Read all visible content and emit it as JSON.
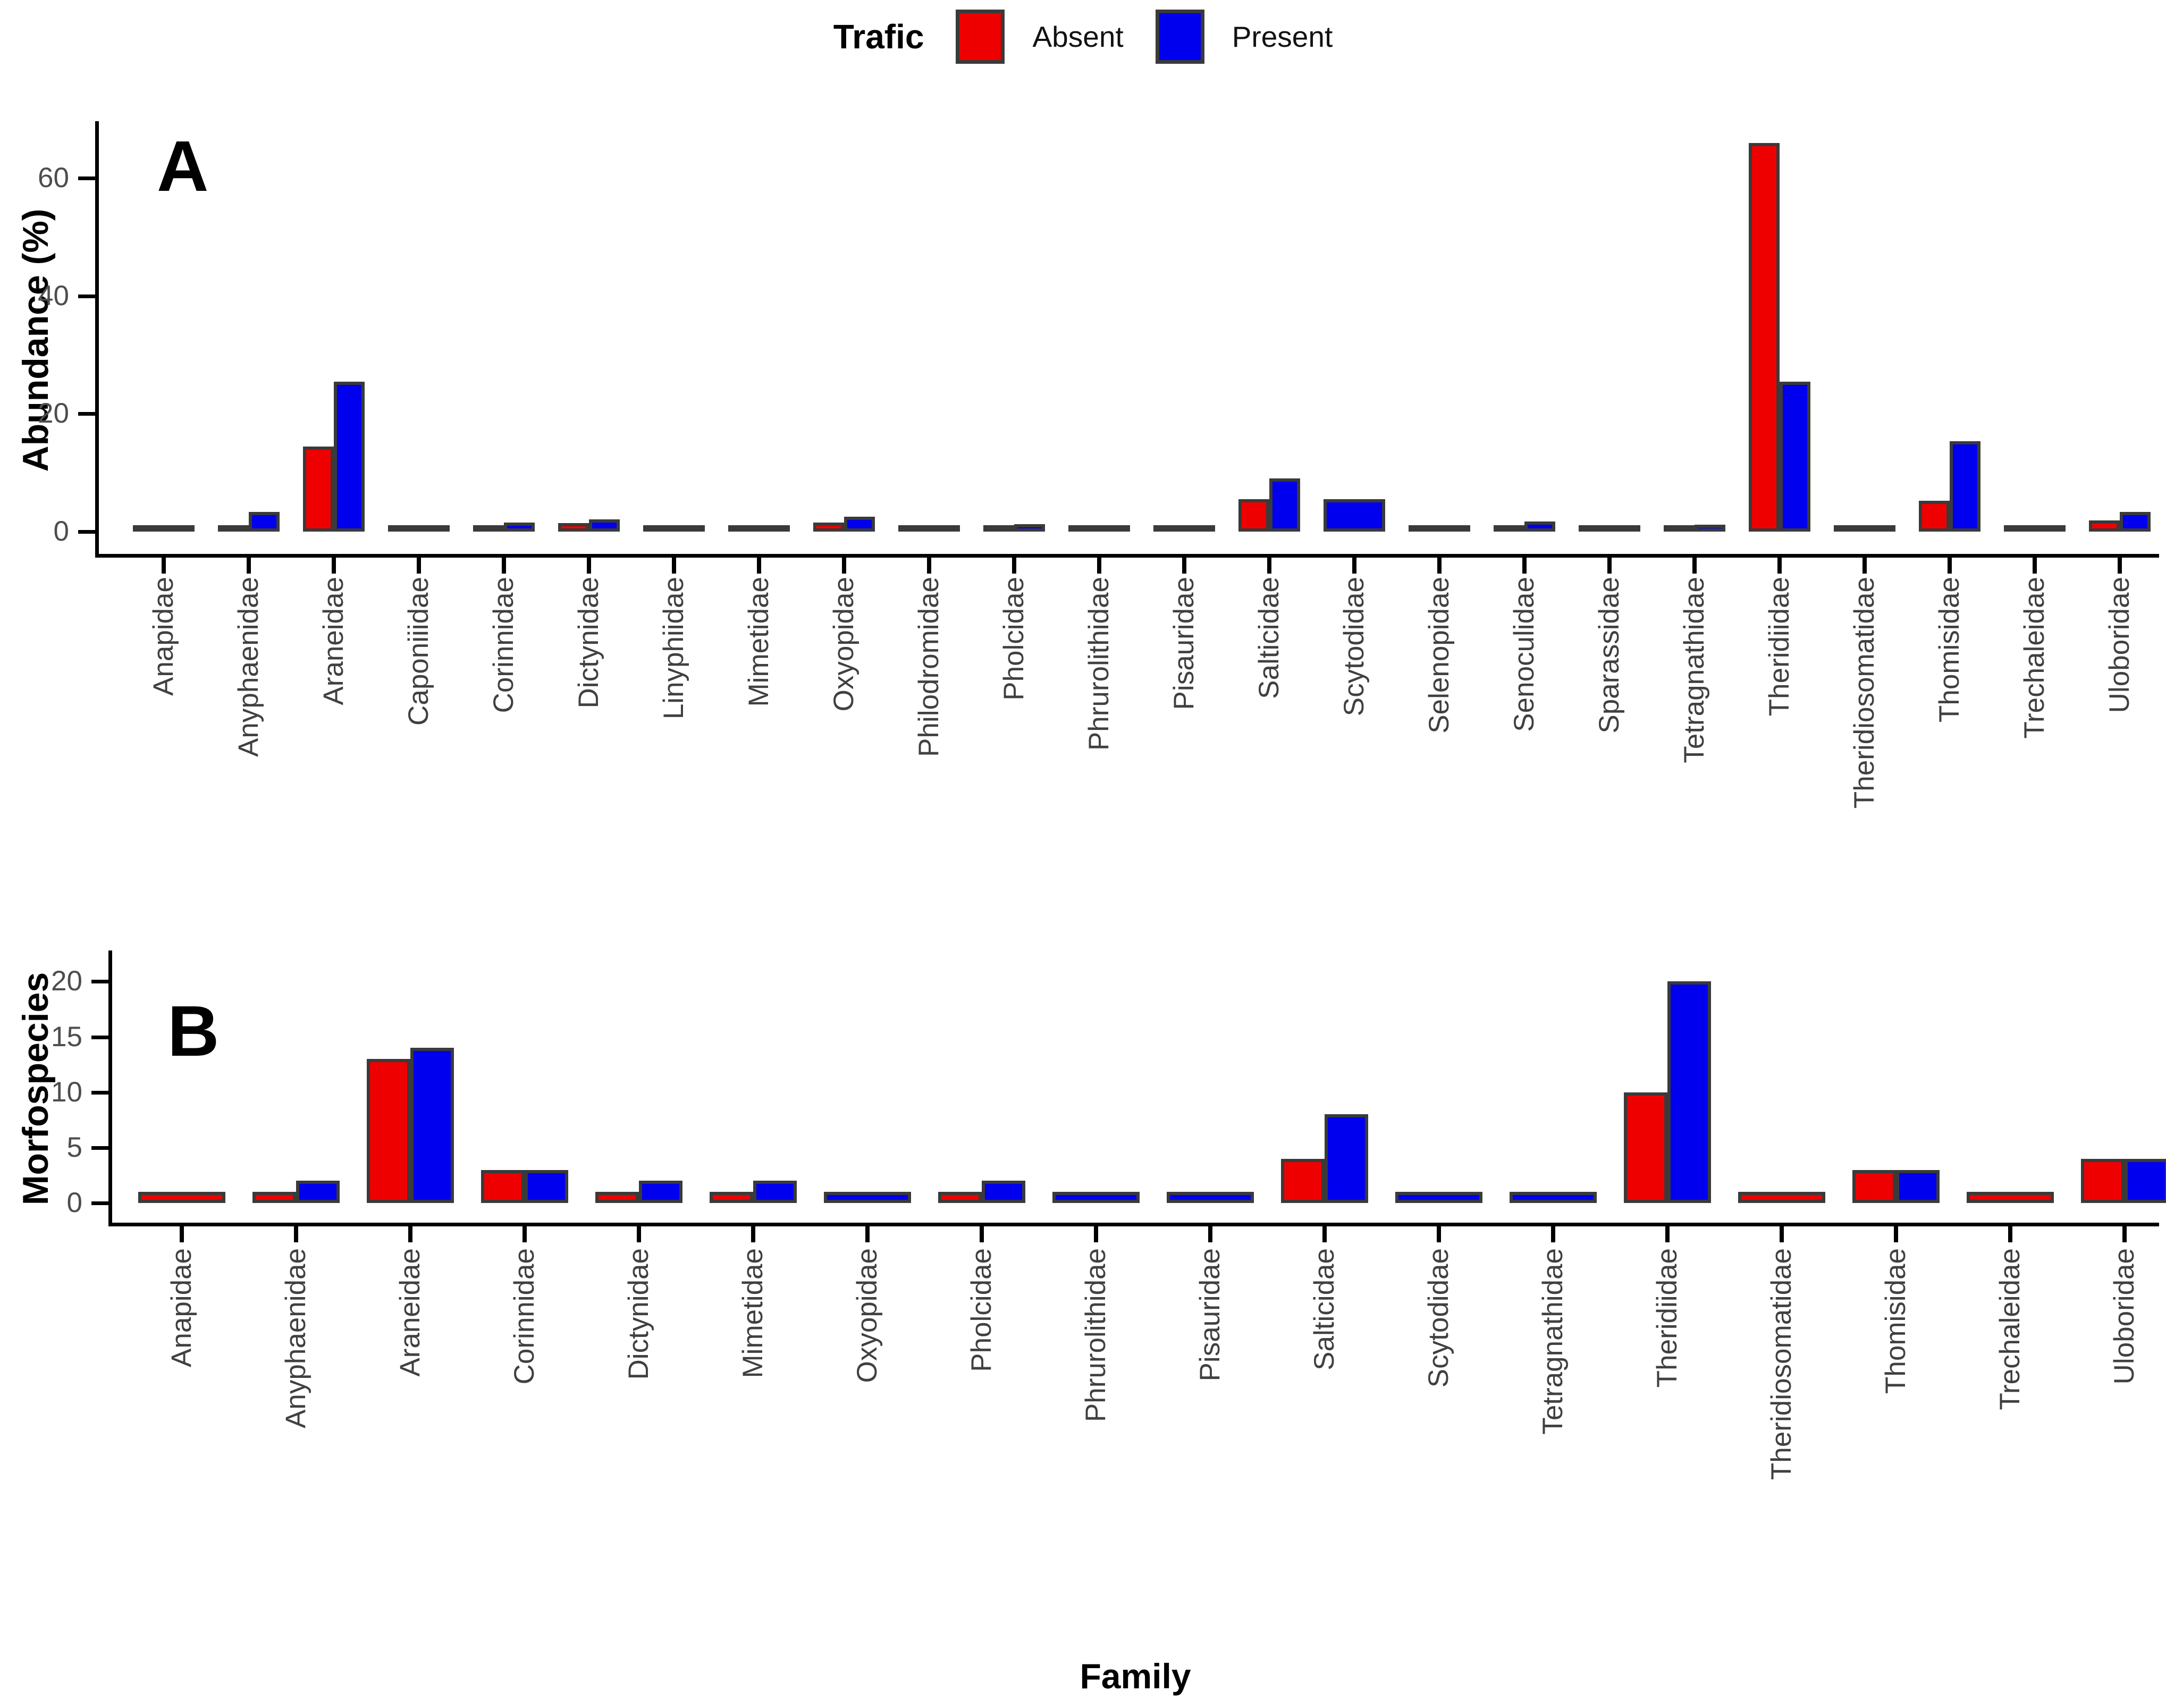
{
  "legend": {
    "title": "Trafic",
    "items": [
      {
        "label": "Absent",
        "color": "#ee0000"
      },
      {
        "label": "Present",
        "color": "#0000ee"
      }
    ]
  },
  "colors": {
    "absent_red": "#ee0000",
    "present_blue": "#0000ee",
    "bar_outline": "#3a3a3a",
    "axis_black": "#000000",
    "tick_text_gray": "#4d4d4d"
  },
  "chart_data": [
    {
      "panel_letter": "A",
      "type": "bar",
      "title": "",
      "xlabel": "",
      "ylabel": "Abundance (%)",
      "yticks": [
        0,
        20,
        40,
        60
      ],
      "ylim": [
        0,
        69
      ],
      "grid": false,
      "legend_position": "top-center",
      "categories": [
        "Anapidae",
        "Anyphaenidae",
        "Araneidae",
        "Caponiiidae",
        "Corinnidae",
        "Dictynidae",
        "Linyphiidae",
        "Mimetidae",
        "Oxyopidae",
        "Philodromidae",
        "Pholcidae",
        "Phrurolithidae",
        "Pisauridae",
        "Salticidae",
        "Scytodidae",
        "Selenopidae",
        "Senoculidae",
        "Sparassidae",
        "Tetragnathidae",
        "Theridiidae",
        "Theridiosomatidae",
        "Thomisidae",
        "Trechaleidae",
        "Uloboridae"
      ],
      "series": [
        {
          "name": "Absent",
          "values": [
            0.2,
            0.5,
            14.4,
            0.3,
            0.5,
            1.4,
            0.6,
            0.6,
            1.5,
            0.3,
            0.6,
            0.3,
            0.3,
            5.5,
            null,
            0.4,
            0.3,
            0.4,
            0.9,
            66,
            0.3,
            5.2,
            0.3,
            1.9
          ]
        },
        {
          "name": "Present",
          "values": [
            0.2,
            3.3,
            25.4,
            0.3,
            1.5,
            2.1,
            0.6,
            0.6,
            2.5,
            0.3,
            1.3,
            0.3,
            0.3,
            9.0,
            5.5,
            0.4,
            1.7,
            0.4,
            1.2,
            25.4,
            0.5,
            15.3,
            0.8,
            3.3
          ]
        }
      ]
    },
    {
      "panel_letter": "B",
      "type": "bar",
      "title": "",
      "xlabel": "Family",
      "ylabel": "Morfospecies",
      "yticks": [
        0,
        5,
        10,
        15,
        20
      ],
      "ylim": [
        0,
        21.5
      ],
      "grid": false,
      "legend_position": "shared-top",
      "categories": [
        "Anapidae",
        "Anyphaenidae",
        "Araneidae",
        "Corinnidae",
        "Dictynidae",
        "Mimetidae",
        "Oxyopidae",
        "Pholcidae",
        "Phrurolithidae",
        "Pisauridae",
        "Salticidae",
        "Scytodidae",
        "Tetragnathidae",
        "Theridiidae",
        "Theridiosomatidae",
        "Thomisidae",
        "Trechaleidae",
        "Uloboridae"
      ],
      "series": [
        {
          "name": "Absent",
          "values": [
            1,
            1,
            13,
            3,
            1,
            1,
            null,
            1,
            null,
            null,
            4,
            null,
            null,
            10,
            1,
            3,
            1,
            4
          ]
        },
        {
          "name": "Present",
          "values": [
            null,
            2,
            14,
            3,
            2,
            2,
            1,
            2,
            1,
            1,
            8,
            1,
            1,
            20,
            null,
            3,
            null,
            4
          ]
        }
      ]
    }
  ]
}
